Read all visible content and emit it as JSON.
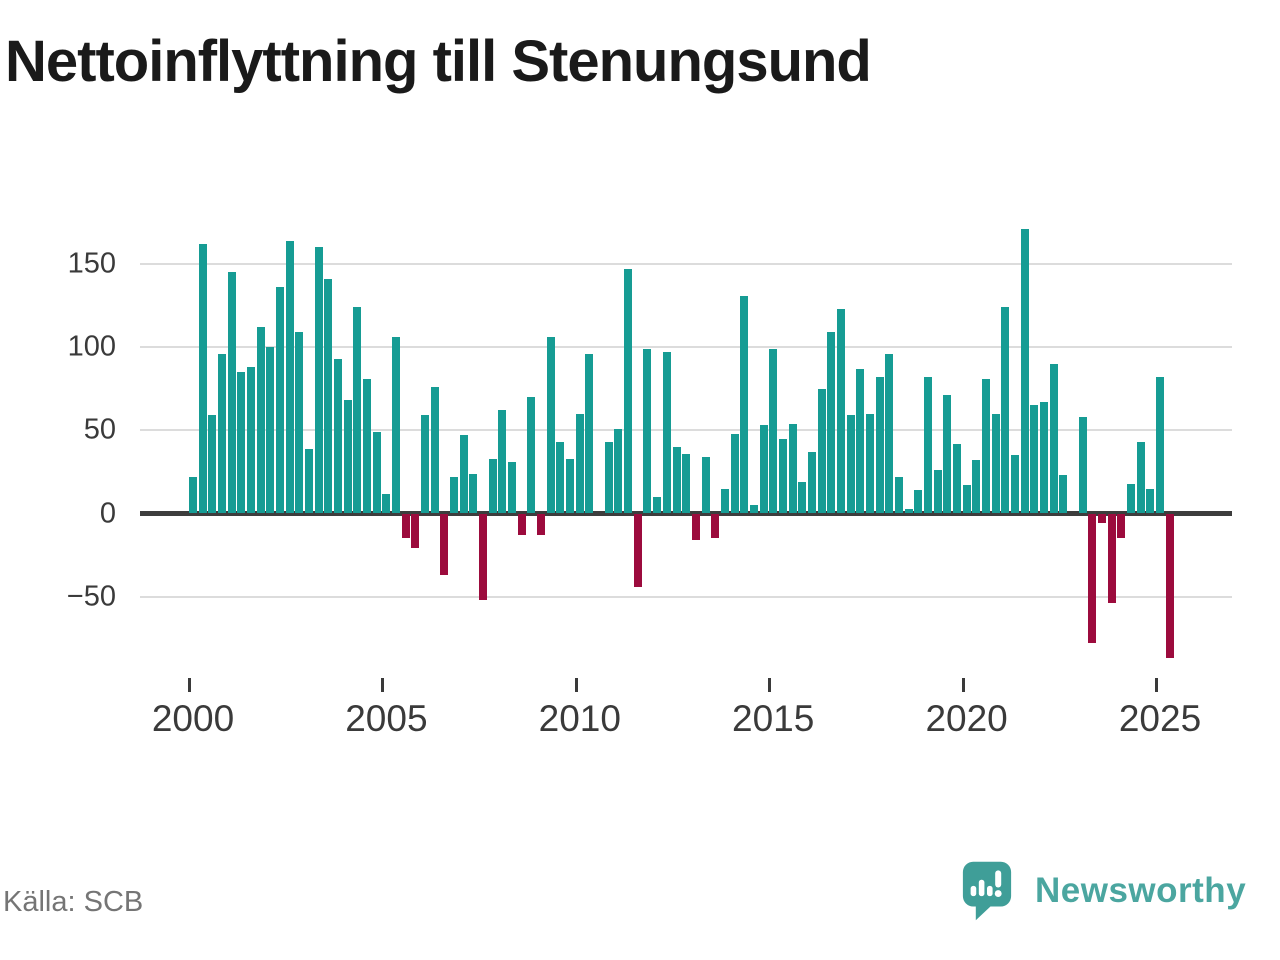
{
  "title": "Nettoinflyttning till Stenungsund",
  "source": "Källa: SCB",
  "brand": {
    "name": "Newsworthy",
    "icon": "newsworthy-bubble-chart-icon"
  },
  "colors": {
    "positive": "#169c94",
    "negative": "#9c0b3d",
    "grid": "#dcdcdc",
    "zero_axis": "#3d3d3d",
    "axis_label": "#3a3a3a",
    "title_text": "#1a1a1a",
    "source_text": "#757575",
    "brand_teal": "#4ba6a0",
    "brand_icon_teal": "#3f9e98"
  },
  "chart_data": {
    "type": "bar",
    "frequency": "quarterly",
    "start_period": "2000 Q1",
    "end_period": "2025 Q2",
    "values": [
      22,
      162,
      59,
      96,
      145,
      85,
      88,
      112,
      100,
      136,
      164,
      109,
      39,
      160,
      141,
      93,
      68,
      124,
      81,
      49,
      12,
      106,
      -15,
      -21,
      59,
      76,
      -37,
      22,
      47,
      24,
      -52,
      33,
      62,
      31,
      -13,
      70,
      -13,
      106,
      43,
      33,
      60,
      96,
      0,
      43,
      51,
      147,
      -44,
      99,
      10,
      97,
      40,
      36,
      -16,
      34,
      -15,
      15,
      48,
      131,
      5,
      53,
      99,
      45,
      54,
      19,
      37,
      75,
      109,
      123,
      59,
      87,
      60,
      82,
      96,
      22,
      3,
      14,
      82,
      26,
      71,
      42,
      17,
      32,
      81,
      60,
      124,
      35,
      171,
      65,
      67,
      90,
      23,
      0,
      58,
      -78,
      -6,
      -54,
      -15,
      18,
      43,
      15,
      82,
      -87
    ],
    "x_tick_labels": [
      "2000",
      "2005",
      "2010",
      "2015",
      "2020",
      "2025"
    ],
    "y_ticks": [
      150,
      100,
      50,
      0,
      -50
    ],
    "y_tick_labels": [
      "150",
      "100",
      "50",
      "0",
      "−50"
    ],
    "ylim": [
      -95,
      180
    ],
    "grid": true,
    "legend": null,
    "xlabel": "",
    "ylabel": ""
  }
}
